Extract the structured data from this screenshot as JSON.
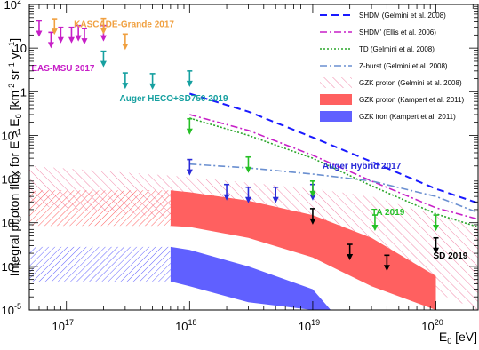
{
  "chart_data": {
    "type": "line",
    "y_axis_title": "Integral photon flux for E > E",
    "y_axis_title_sub": "0",
    "y_axis_title_unit_pre": " [km",
    "y_axis_title_unit_mid": " sr",
    "y_axis_title_unit_post": " yr",
    "y_axis_title_unit_end": "]",
    "x_axis_title": "E",
    "x_axis_title_sub": "0",
    "x_axis_title_unit": " [eV]",
    "xscale": "log",
    "yscale": "log",
    "xlim": [
      5e+16,
      2.2e+20
    ],
    "ylim": [
      1e-05,
      100
    ],
    "x_ticks": [
      {
        "value": 1e+17,
        "base": "10",
        "exp": "17"
      },
      {
        "value": 1e+18,
        "base": "10",
        "exp": "18"
      },
      {
        "value": 1e+19,
        "base": "10",
        "exp": "19"
      },
      {
        "value": 1e+20,
        "base": "10",
        "exp": "20"
      }
    ],
    "y_ticks": [
      {
        "value": 1e-05,
        "base": "10",
        "exp": "-5"
      },
      {
        "value": 0.0001,
        "base": "10",
        "exp": "-4"
      },
      {
        "value": 0.001,
        "base": "10",
        "exp": "-3"
      },
      {
        "value": 0.01,
        "base": "10",
        "exp": "-2"
      },
      {
        "value": 0.1,
        "base": "10",
        "exp": "-1"
      },
      {
        "value": 1,
        "base": "1",
        "exp": ""
      },
      {
        "value": 10,
        "base": "10",
        "exp": ""
      },
      {
        "value": 100,
        "base": "10",
        "exp": "2"
      }
    ],
    "legend_position": "top-right",
    "legend": [
      {
        "label": "SHDM (Gelmini et al. 2008)",
        "style": "dash",
        "color": "#1a1aff"
      },
      {
        "label": "SHDM' (Ellis et al. 2006)",
        "style": "dashdot",
        "color": "#c71fc7"
      },
      {
        "label": "TD (Gelmini et al. 2008)",
        "style": "dot",
        "color": "#2aa52a"
      },
      {
        "label": "Z-burst (Gelmini et al. 2008)",
        "style": "dashdot",
        "color": "#6a8fd0"
      },
      {
        "label": "GZK proton (Gelmini et al. 2008)",
        "style": "hatch",
        "color": "#f07aa0"
      },
      {
        "label": "GZK proton (Kampert et al. 2011)",
        "style": "fill",
        "color": "#ff6060"
      },
      {
        "label": "GZK iron (Kampert et al. 2011)",
        "style": "fill",
        "color": "#6060ff"
      }
    ],
    "series": [
      {
        "name": "SHDM (Gelmini et al. 2008)",
        "x": [
          1e+18,
          3e+18,
          1e+19,
          3e+19,
          1e+20,
          2.2e+20
        ],
        "y": [
          0.9,
          0.35,
          0.09,
          0.025,
          0.006,
          0.0028
        ]
      },
      {
        "name": "SHDM' (Ellis et al. 2006)",
        "x": [
          1e+18,
          3e+18,
          1e+19,
          3e+19,
          1e+20,
          2.2e+20
        ],
        "y": [
          0.3,
          0.13,
          0.035,
          0.009,
          0.0022,
          0.0012
        ]
      },
      {
        "name": "TD (Gelmini et al. 2008)",
        "x": [
          1e+18,
          3e+18,
          1e+19,
          3e+19,
          1e+20,
          2.2e+20
        ],
        "y": [
          0.25,
          0.1,
          0.03,
          0.007,
          0.0016,
          0.0008
        ]
      },
      {
        "name": "Z-burst (Gelmini et al. 2008)",
        "x": [
          1e+18,
          3e+18,
          1e+19,
          3e+19,
          1e+20,
          2.2e+20
        ],
        "y": [
          0.022,
          0.018,
          0.013,
          0.009,
          0.004,
          0.0017
        ]
      }
    ],
    "bands": [
      {
        "name": "GZK proton (Gelmini et al. 2008)",
        "x": [
          5e+16,
          7e+17,
          1e+18,
          1e+19,
          3e+19,
          1e+20,
          2.2e+20
        ],
        "upper": [
          0.02,
          0.012,
          0.011,
          0.006,
          0.004,
          0.0015,
          0.0008
        ],
        "lower": [
          0.0025,
          0.0013,
          0.0011,
          0.00028,
          0.00012,
          2.5e-05,
          1e-05
        ]
      },
      {
        "name": "GZK proton (Kampert et al. 2011)",
        "x": [
          7e+17,
          1e+18,
          3e+18,
          1e+19,
          3e+19,
          1e+20
        ],
        "upper": [
          0.0055,
          0.005,
          0.0032,
          0.0015,
          0.00045,
          6e-05
        ],
        "lower": [
          0.00085,
          0.0008,
          0.00045,
          0.00016,
          3.5e-05,
          1e-05
        ]
      },
      {
        "name": "GZK iron (Kampert et al. 2011)",
        "x": [
          7e+17,
          1e+18,
          3e+18,
          1e+19,
          1.4e+19
        ],
        "upper": [
          0.00028,
          0.00024,
          0.0001,
          3e-05,
          1e-05
        ],
        "lower": [
          4.5e-05,
          3.5e-05,
          1.5e-05,
          1e-05,
          1e-05
        ]
      },
      {
        "name": "GZK proton (Kampert et al. 2011) extrapolated",
        "x": [
          5e+16,
          7e+17
        ],
        "upper": [
          0.0055,
          0.0055
        ],
        "lower": [
          0.00085,
          0.00085
        ],
        "hatched": true
      },
      {
        "name": "GZK iron (Kampert et al. 2011) extrapolated",
        "x": [
          5e+16,
          7e+17
        ],
        "upper": [
          0.00028,
          0.00028
        ],
        "lower": [
          4.5e-05,
          4.5e-05
        ],
        "hatched": true
      }
    ],
    "limits": [
      {
        "experiment": "EAS-MSU 2017",
        "color": "#c71fc7",
        "points": [
          [
            6e+16,
            42
          ],
          [
            7.5e+16,
            23
          ],
          [
            9e+16,
            30
          ],
          [
            1.1e+17,
            30
          ],
          [
            1.25e+17,
            33
          ],
          [
            1.4e+17,
            28
          ],
          [
            2e+17,
            33
          ]
        ]
      },
      {
        "experiment": "KASCADE-Grande 2017",
        "color": "#f0a040",
        "points": [
          [
            8e+16,
            47
          ],
          [
            2e+17,
            48
          ],
          [
            3e+17,
            21
          ]
        ]
      },
      {
        "experiment": "Auger HECO+SD750 2019",
        "color": "#16a0a0",
        "points": [
          [
            2e+17,
            8.5
          ],
          [
            3e+17,
            2.7
          ],
          [
            5e+17,
            2.6
          ],
          [
            1e+18,
            3
          ]
        ]
      },
      {
        "experiment": "Auger Hybrid 2017",
        "color": "#2a2ad8",
        "points": [
          [
            1e+18,
            0.028
          ],
          [
            2e+18,
            0.0075
          ],
          [
            3e+18,
            0.0065
          ],
          [
            5e+18,
            0.0065
          ],
          [
            1e+19,
            0.0075
          ]
        ]
      },
      {
        "experiment": "TA 2019",
        "color": "#26c026",
        "points": [
          [
            1e+18,
            0.24
          ],
          [
            3e+18,
            0.032
          ],
          [
            1e+19,
            0.009
          ],
          [
            3.2e+19,
            0.0015
          ],
          [
            1e+20,
            0.0015
          ]
        ]
      },
      {
        "experiment": "SD 2019",
        "color": "#000000",
        "points": [
          [
            1e+19,
            0.0021
          ],
          [
            2e+19,
            0.00032
          ],
          [
            4e+19,
            0.00018
          ],
          [
            1e+20,
            0.00045
          ]
        ]
      }
    ],
    "annotations": [
      {
        "text": "KASCADE-Grande 2017",
        "color": "#f0a040",
        "x": 1.15e+17,
        "y": 30
      },
      {
        "text": "EAS-MSU 2017",
        "color": "#c71fc7",
        "x": 5.2e+16,
        "y": 3.0
      },
      {
        "text": "Auger HECO+SD750 2019",
        "color": "#16a0a0",
        "x": 2.7e+17,
        "y": 0.6
      },
      {
        "text": "Auger Hybrid 2017",
        "color": "#2a2ad8",
        "x": 1.2e+19,
        "y": 0.017
      },
      {
        "text": "TA 2019",
        "color": "#26c026",
        "x": 3e+19,
        "y": 0.0015
      },
      {
        "text": "SD 2019",
        "color": "#000000",
        "x": 9.5e+19,
        "y": 0.00015
      }
    ]
  }
}
